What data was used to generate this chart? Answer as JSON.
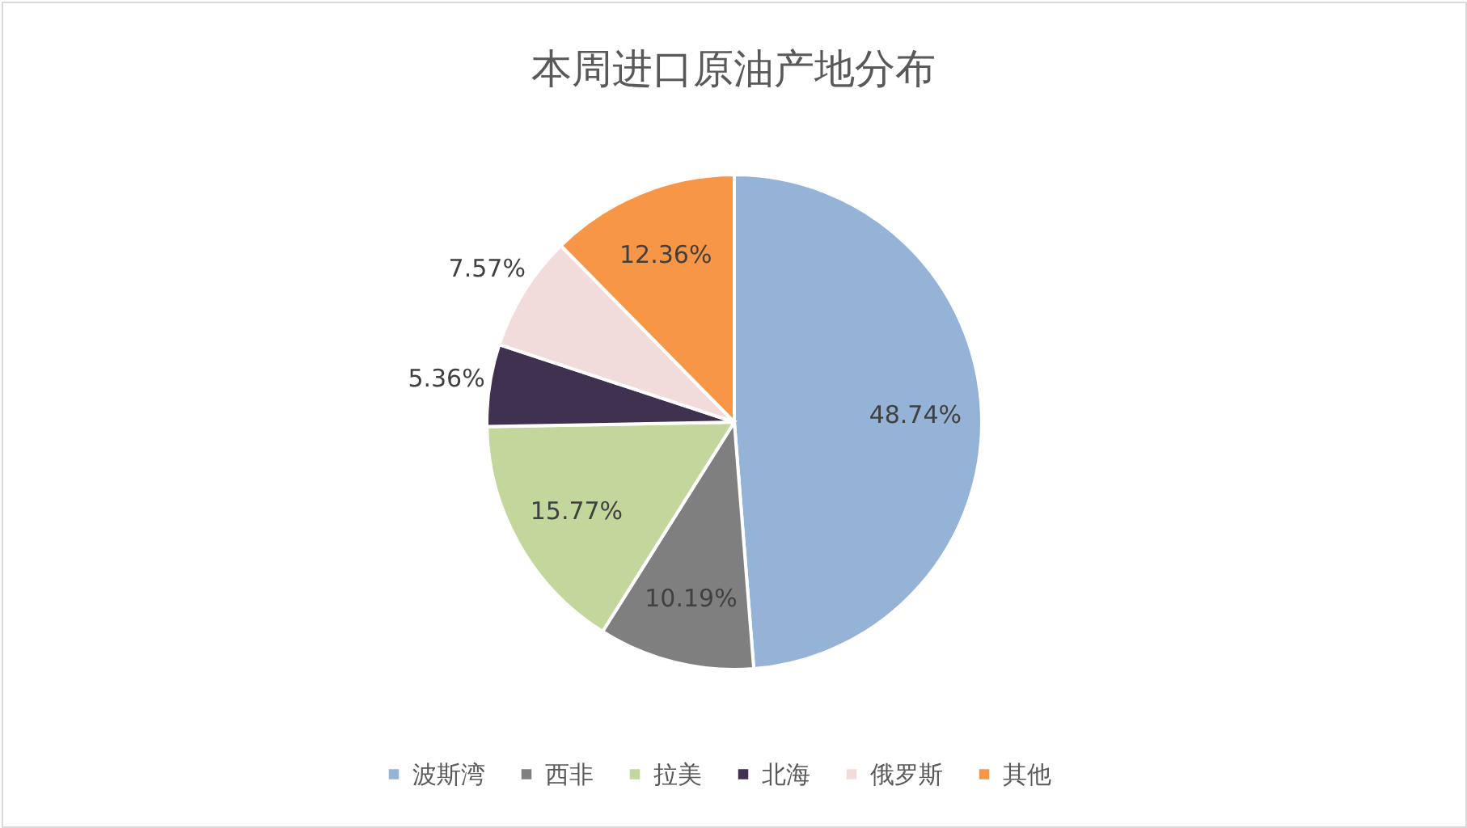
{
  "chart_data": {
    "type": "pie",
    "title": "本周进口原油产地分布",
    "categories": [
      "波斯湾",
      "西非",
      "拉美",
      "北海",
      "俄罗斯",
      "其他"
    ],
    "values": [
      48.74,
      10.19,
      15.77,
      5.36,
      7.57,
      12.36
    ],
    "value_labels": [
      "48.74%",
      "10.19%",
      "15.77%",
      "5.36%",
      "7.57%",
      "12.36%"
    ],
    "colors": [
      "#95b3d7",
      "#7f7f7f",
      "#c3d69b",
      "#403151",
      "#f2dcdb",
      "#f79646"
    ],
    "legend": "bottom"
  }
}
